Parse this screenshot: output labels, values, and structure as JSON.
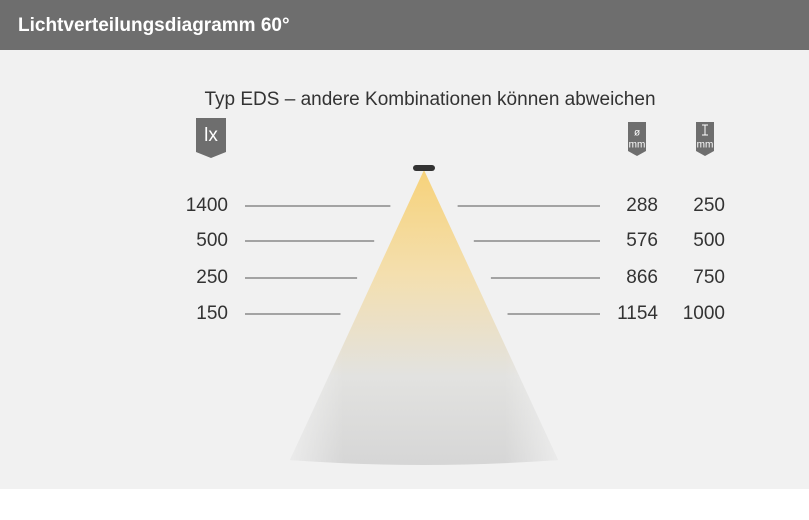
{
  "header": {
    "title": "Lichtverteilungsdiagramm 60°"
  },
  "subtitle": "Typ EDS – andere Kombinationen können abweichen",
  "units": {
    "illuminance": "lx",
    "diameter_symbol": "ø",
    "diameter": "mm",
    "distance": "mm"
  },
  "rows": [
    {
      "illuminance": 1400,
      "diameter": 288,
      "distance": 250
    },
    {
      "illuminance": 500,
      "diameter": 576,
      "distance": 500
    },
    {
      "illuminance": 250,
      "diameter": 866,
      "distance": 750
    },
    {
      "illuminance": 150,
      "diameter": 1154,
      "distance": 1000
    }
  ]
}
